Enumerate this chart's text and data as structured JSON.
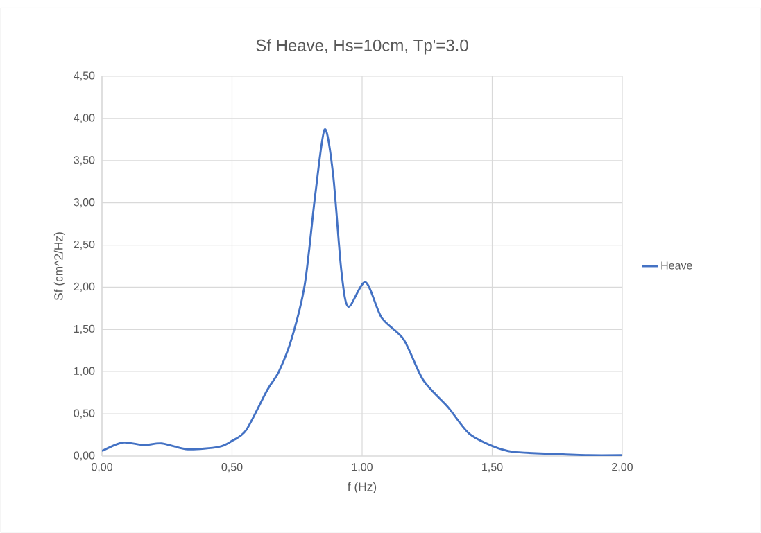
{
  "chart_data": {
    "type": "line",
    "title": "Sf Heave, Hs=10cm, Tp'=3.0",
    "xlabel": "f (Hz)",
    "ylabel": "Sf (cm^2/Hz)",
    "x": [
      0,
      0.08,
      0.16,
      0.23,
      0.33,
      0.45,
      0.5,
      0.555,
      0.635,
      0.68,
      0.73,
      0.78,
      0.82,
      0.856,
      0.888,
      0.92,
      0.947,
      1.013,
      1.075,
      1.16,
      1.235,
      1.33,
      1.41,
      1.5,
      1.58,
      1.74,
      1.87,
      2.0
    ],
    "series": [
      {
        "name": "Heave",
        "color": "#4472c4",
        "values": [
          0.06,
          0.16,
          0.13,
          0.15,
          0.08,
          0.11,
          0.18,
          0.31,
          0.78,
          1.0,
          1.4,
          2.04,
          3.1,
          3.87,
          3.35,
          2.2,
          1.77,
          2.06,
          1.64,
          1.38,
          0.9,
          0.58,
          0.27,
          0.12,
          0.05,
          0.025,
          0.01,
          0.01
        ]
      }
    ],
    "xlim": [
      0,
      2
    ],
    "ylim": [
      0,
      4.5
    ],
    "xticks": [
      {
        "value": 0,
        "label": "0,00"
      },
      {
        "value": 0.5,
        "label": "0,50"
      },
      {
        "value": 1,
        "label": "1,00"
      },
      {
        "value": 1.5,
        "label": "1,50"
      },
      {
        "value": 2,
        "label": "2,00"
      }
    ],
    "yticks": [
      {
        "value": 0,
        "label": "0,00"
      },
      {
        "value": 0.5,
        "label": "0,50"
      },
      {
        "value": 1,
        "label": "1,00"
      },
      {
        "value": 1.5,
        "label": "1,50"
      },
      {
        "value": 2,
        "label": "2,00"
      },
      {
        "value": 2.5,
        "label": "2,50"
      },
      {
        "value": 3,
        "label": "3,00"
      },
      {
        "value": 3.5,
        "label": "3,50"
      },
      {
        "value": 4,
        "label": "4,00"
      },
      {
        "value": 4.5,
        "label": "4,50"
      }
    ],
    "grid": true,
    "legend": "right",
    "marker": "none",
    "line_style": "solid"
  }
}
